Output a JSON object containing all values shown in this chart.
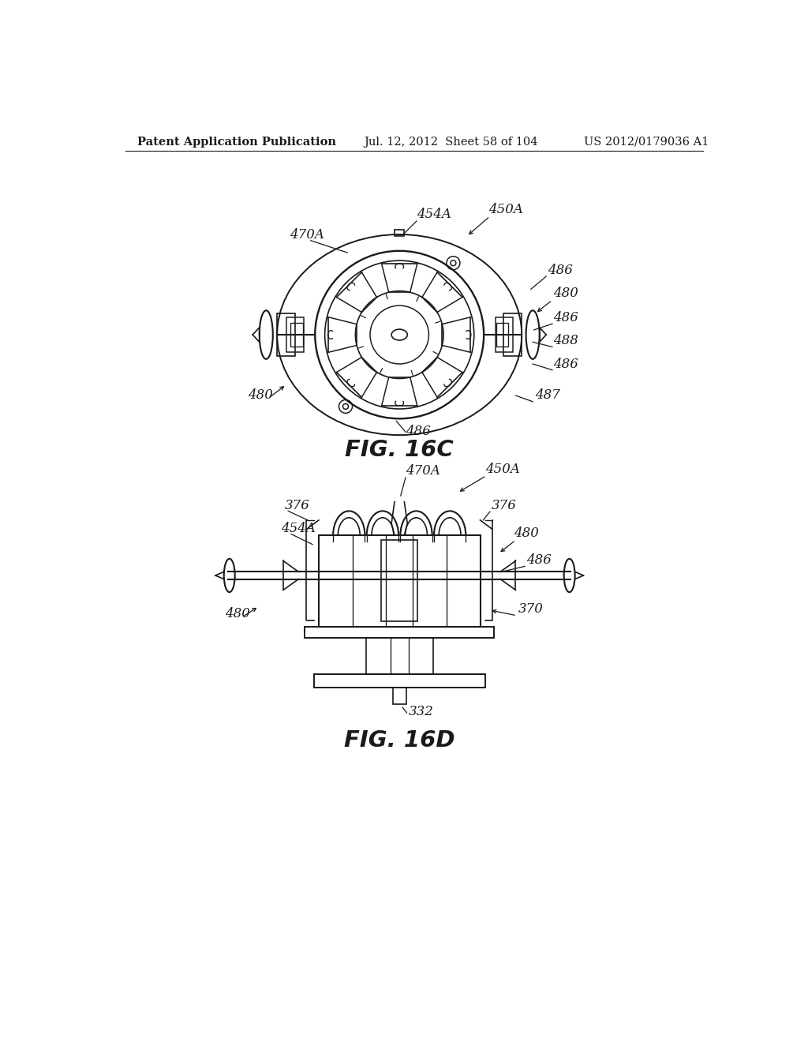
{
  "bg_color": "#ffffff",
  "line_color": "#1a1a1a",
  "header_left": "Patent Application Publication",
  "header_mid": "Jul. 12, 2012  Sheet 58 of 104",
  "header_right": "US 2012/0179036 A1",
  "fig_label_C": "FIG. 16C",
  "fig_label_D": "FIG. 16D",
  "header_fontsize": 10.5,
  "fig_label_fontsize": 21,
  "annotation_fontsize": 12,
  "line_width": 1.2
}
